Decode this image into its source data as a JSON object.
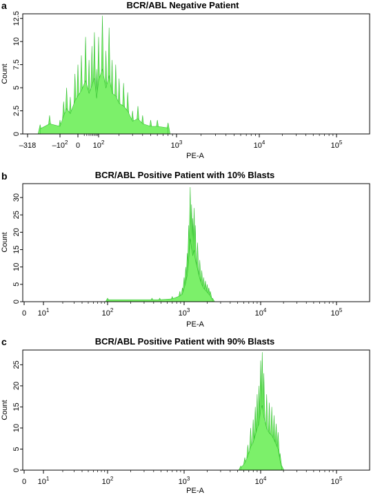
{
  "chart_data": [
    {
      "type": "area",
      "letter": "a",
      "title": "BCR/ABL Negative Patient",
      "xlabel": "PE-A",
      "ylabel": "Count",
      "yticks": [
        0,
        2.5,
        5,
        7.5,
        10,
        12.5
      ],
      "ytick_labels": [
        "0",
        "2.5",
        "5",
        "7.5",
        "10",
        "12.5"
      ],
      "ylim": [
        0,
        13
      ],
      "xticks": [
        -318,
        -100,
        0,
        100,
        1000,
        10000,
        100000
      ],
      "xtick_labels": [
        {
          "base": "–318",
          "exp": ""
        },
        {
          "base": "–10",
          "exp": "2"
        },
        {
          "base": "0",
          "exp": ""
        },
        {
          "base": "10",
          "exp": "2"
        },
        {
          "base": "10",
          "exp": "3"
        },
        {
          "base": "10",
          "exp": "4"
        },
        {
          "base": "10",
          "exp": "5"
        }
      ],
      "histogram": {
        "x": [
          -210,
          -150,
          -100,
          -70,
          -50,
          -30,
          -10,
          0,
          10,
          25,
          40,
          55,
          70,
          85,
          100,
          115,
          130,
          145,
          160,
          180,
          200,
          230,
          260,
          300,
          350,
          400,
          500,
          600,
          800
        ],
        "counts": [
          1,
          2,
          1.5,
          3.5,
          5,
          4,
          6.5,
          7.5,
          8.5,
          10.5,
          8,
          9.5,
          11,
          7,
          10.5,
          12.8,
          9,
          11.5,
          8,
          7.5,
          6,
          5.5,
          4.5,
          2.5,
          3,
          2,
          1.5,
          1.5,
          1.2
        ]
      }
    },
    {
      "type": "area",
      "letter": "b",
      "title": "BCR/ABL Positive Patient with 10% Blasts",
      "xlabel": "PE-A",
      "ylabel": "Count",
      "yticks": [
        0,
        5,
        10,
        15,
        20,
        25,
        30
      ],
      "ytick_labels": [
        "0",
        "5",
        "10",
        "15",
        "20",
        "25",
        "30"
      ],
      "ylim": [
        0,
        34
      ],
      "xticks": [
        0,
        10,
        100,
        1000,
        10000,
        100000
      ],
      "xtick_labels": [
        {
          "base": "0",
          "exp": ""
        },
        {
          "base": "10",
          "exp": "1"
        },
        {
          "base": "10",
          "exp": "2"
        },
        {
          "base": "10",
          "exp": "3"
        },
        {
          "base": "10",
          "exp": "4"
        },
        {
          "base": "10",
          "exp": "5"
        }
      ],
      "histogram": {
        "x": [
          100,
          380,
          480,
          700,
          880,
          950,
          1000,
          1050,
          1100,
          1150,
          1200,
          1250,
          1300,
          1350,
          1400,
          1500,
          1600,
          1700,
          1800,
          1900,
          2000,
          2100,
          2200,
          2350
        ],
        "counts": [
          1,
          1,
          1,
          1.5,
          3,
          4,
          7,
          10,
          14,
          22,
          33,
          28,
          24,
          27,
          22,
          17,
          12,
          9,
          7,
          6,
          5,
          4,
          3,
          1
        ]
      }
    },
    {
      "type": "area",
      "letter": "c",
      "title": "BCR/ABL Positive Patient with 90% Blasts",
      "xlabel": "PE-A",
      "ylabel": "Count",
      "yticks": [
        0,
        5,
        10,
        15,
        20,
        25
      ],
      "ytick_labels": [
        "0",
        "5",
        "10",
        "15",
        "20",
        "25"
      ],
      "ylim": [
        0,
        28.5
      ],
      "xticks": [
        0,
        10,
        100,
        1000,
        10000,
        100000
      ],
      "xtick_labels": [
        {
          "base": "0",
          "exp": ""
        },
        {
          "base": "10",
          "exp": "1"
        },
        {
          "base": "10",
          "exp": "2"
        },
        {
          "base": "10",
          "exp": "3"
        },
        {
          "base": "10",
          "exp": "4"
        },
        {
          "base": "10",
          "exp": "5"
        }
      ],
      "histogram": {
        "x": [
          5500,
          6200,
          6800,
          7400,
          8000,
          8500,
          9000,
          9500,
          10000,
          10500,
          11000,
          12000,
          13000,
          14000,
          15000,
          16000,
          17000,
          18000,
          19000
        ],
        "counts": [
          1,
          3,
          6,
          10,
          12,
          15,
          18,
          20,
          26,
          28,
          23,
          18,
          16,
          15,
          13,
          11,
          9,
          4,
          1
        ]
      }
    }
  ]
}
